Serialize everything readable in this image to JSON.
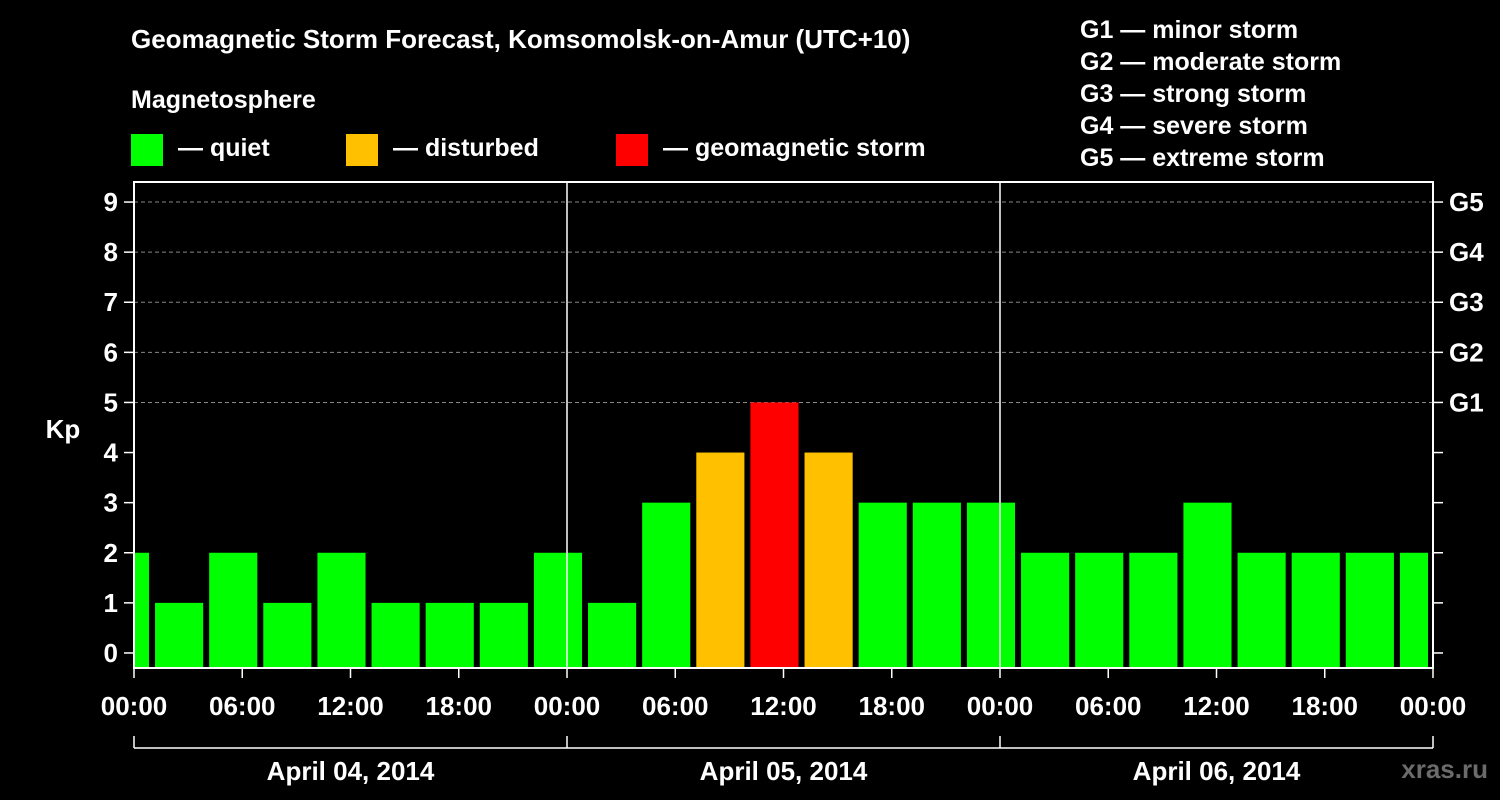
{
  "title": "Geomagnetic Storm Forecast, Komsomolsk-on-Amur (UTC+10)",
  "subtitle": "Magnetosphere",
  "legend": [
    {
      "label": "— quiet",
      "color": "#00ff00"
    },
    {
      "label": "— disturbed",
      "color": "#ffc000"
    },
    {
      "label": "— geomagnetic storm",
      "color": "#ff0000"
    }
  ],
  "g_levels": [
    "G1 — minor storm",
    "G2 — moderate storm",
    "G3 — strong storm",
    "G4 — severe storm",
    "G5 — extreme storm"
  ],
  "watermark": "xras.ru",
  "chart_data": {
    "type": "bar",
    "title": "Geomagnetic Storm Forecast, Komsomolsk-on-Amur (UTC+10)",
    "ylabel": "Kp",
    "xlabel": "",
    "ylim": [
      -0.3,
      9.4
    ],
    "yticks": [
      0,
      1,
      2,
      3,
      4,
      5,
      6,
      7,
      8,
      9
    ],
    "right_axis": [
      {
        "value": 5,
        "label": "G1"
      },
      {
        "value": 6,
        "label": "G2"
      },
      {
        "value": 7,
        "label": "G3"
      },
      {
        "value": 8,
        "label": "G4"
      },
      {
        "value": 9,
        "label": "G5"
      }
    ],
    "grid_values": [
      5,
      6,
      7,
      8,
      9
    ],
    "x_range_hours": [
      0,
      72
    ],
    "x_tick_hours": [
      0,
      6,
      12,
      18,
      24,
      30,
      36,
      42,
      48,
      54,
      60,
      66,
      72
    ],
    "x_tick_labels": [
      "00:00",
      "06:00",
      "12:00",
      "18:00",
      "00:00",
      "06:00",
      "12:00",
      "18:00",
      "00:00",
      "06:00",
      "12:00",
      "18:00",
      "00:00"
    ],
    "day_separators_hours": [
      24,
      48
    ],
    "days": [
      {
        "label": "April 04, 2014",
        "start": 0,
        "end": 24
      },
      {
        "label": "April 05, 2014",
        "start": 24,
        "end": 48
      },
      {
        "label": "April 06, 2014",
        "start": 48,
        "end": 72
      }
    ],
    "bars": [
      {
        "start": 0,
        "end": 1,
        "kp": 2,
        "level": "quiet"
      },
      {
        "start": 1,
        "end": 4,
        "kp": 1,
        "level": "quiet"
      },
      {
        "start": 4,
        "end": 7,
        "kp": 2,
        "level": "quiet"
      },
      {
        "start": 7,
        "end": 10,
        "kp": 1,
        "level": "quiet"
      },
      {
        "start": 10,
        "end": 13,
        "kp": 2,
        "level": "quiet"
      },
      {
        "start": 13,
        "end": 16,
        "kp": 1,
        "level": "quiet"
      },
      {
        "start": 16,
        "end": 19,
        "kp": 1,
        "level": "quiet"
      },
      {
        "start": 19,
        "end": 22,
        "kp": 1,
        "level": "quiet"
      },
      {
        "start": 22,
        "end": 25,
        "kp": 2,
        "level": "quiet"
      },
      {
        "start": 25,
        "end": 28,
        "kp": 1,
        "level": "quiet"
      },
      {
        "start": 28,
        "end": 31,
        "kp": 3,
        "level": "quiet"
      },
      {
        "start": 31,
        "end": 34,
        "kp": 4,
        "level": "disturbed"
      },
      {
        "start": 34,
        "end": 37,
        "kp": 5,
        "level": "storm"
      },
      {
        "start": 37,
        "end": 40,
        "kp": 4,
        "level": "disturbed"
      },
      {
        "start": 40,
        "end": 43,
        "kp": 3,
        "level": "quiet"
      },
      {
        "start": 43,
        "end": 46,
        "kp": 3,
        "level": "quiet"
      },
      {
        "start": 46,
        "end": 49,
        "kp": 3,
        "level": "quiet"
      },
      {
        "start": 49,
        "end": 52,
        "kp": 2,
        "level": "quiet"
      },
      {
        "start": 52,
        "end": 55,
        "kp": 2,
        "level": "quiet"
      },
      {
        "start": 55,
        "end": 58,
        "kp": 2,
        "level": "quiet"
      },
      {
        "start": 58,
        "end": 61,
        "kp": 3,
        "level": "quiet"
      },
      {
        "start": 61,
        "end": 64,
        "kp": 2,
        "level": "quiet"
      },
      {
        "start": 64,
        "end": 67,
        "kp": 2,
        "level": "quiet"
      },
      {
        "start": 67,
        "end": 70,
        "kp": 2,
        "level": "quiet"
      },
      {
        "start": 70,
        "end": 72,
        "kp": 2,
        "level": "quiet"
      }
    ],
    "level_colors": {
      "quiet": "#00ff00",
      "disturbed": "#ffc000",
      "storm": "#ff0000"
    }
  }
}
